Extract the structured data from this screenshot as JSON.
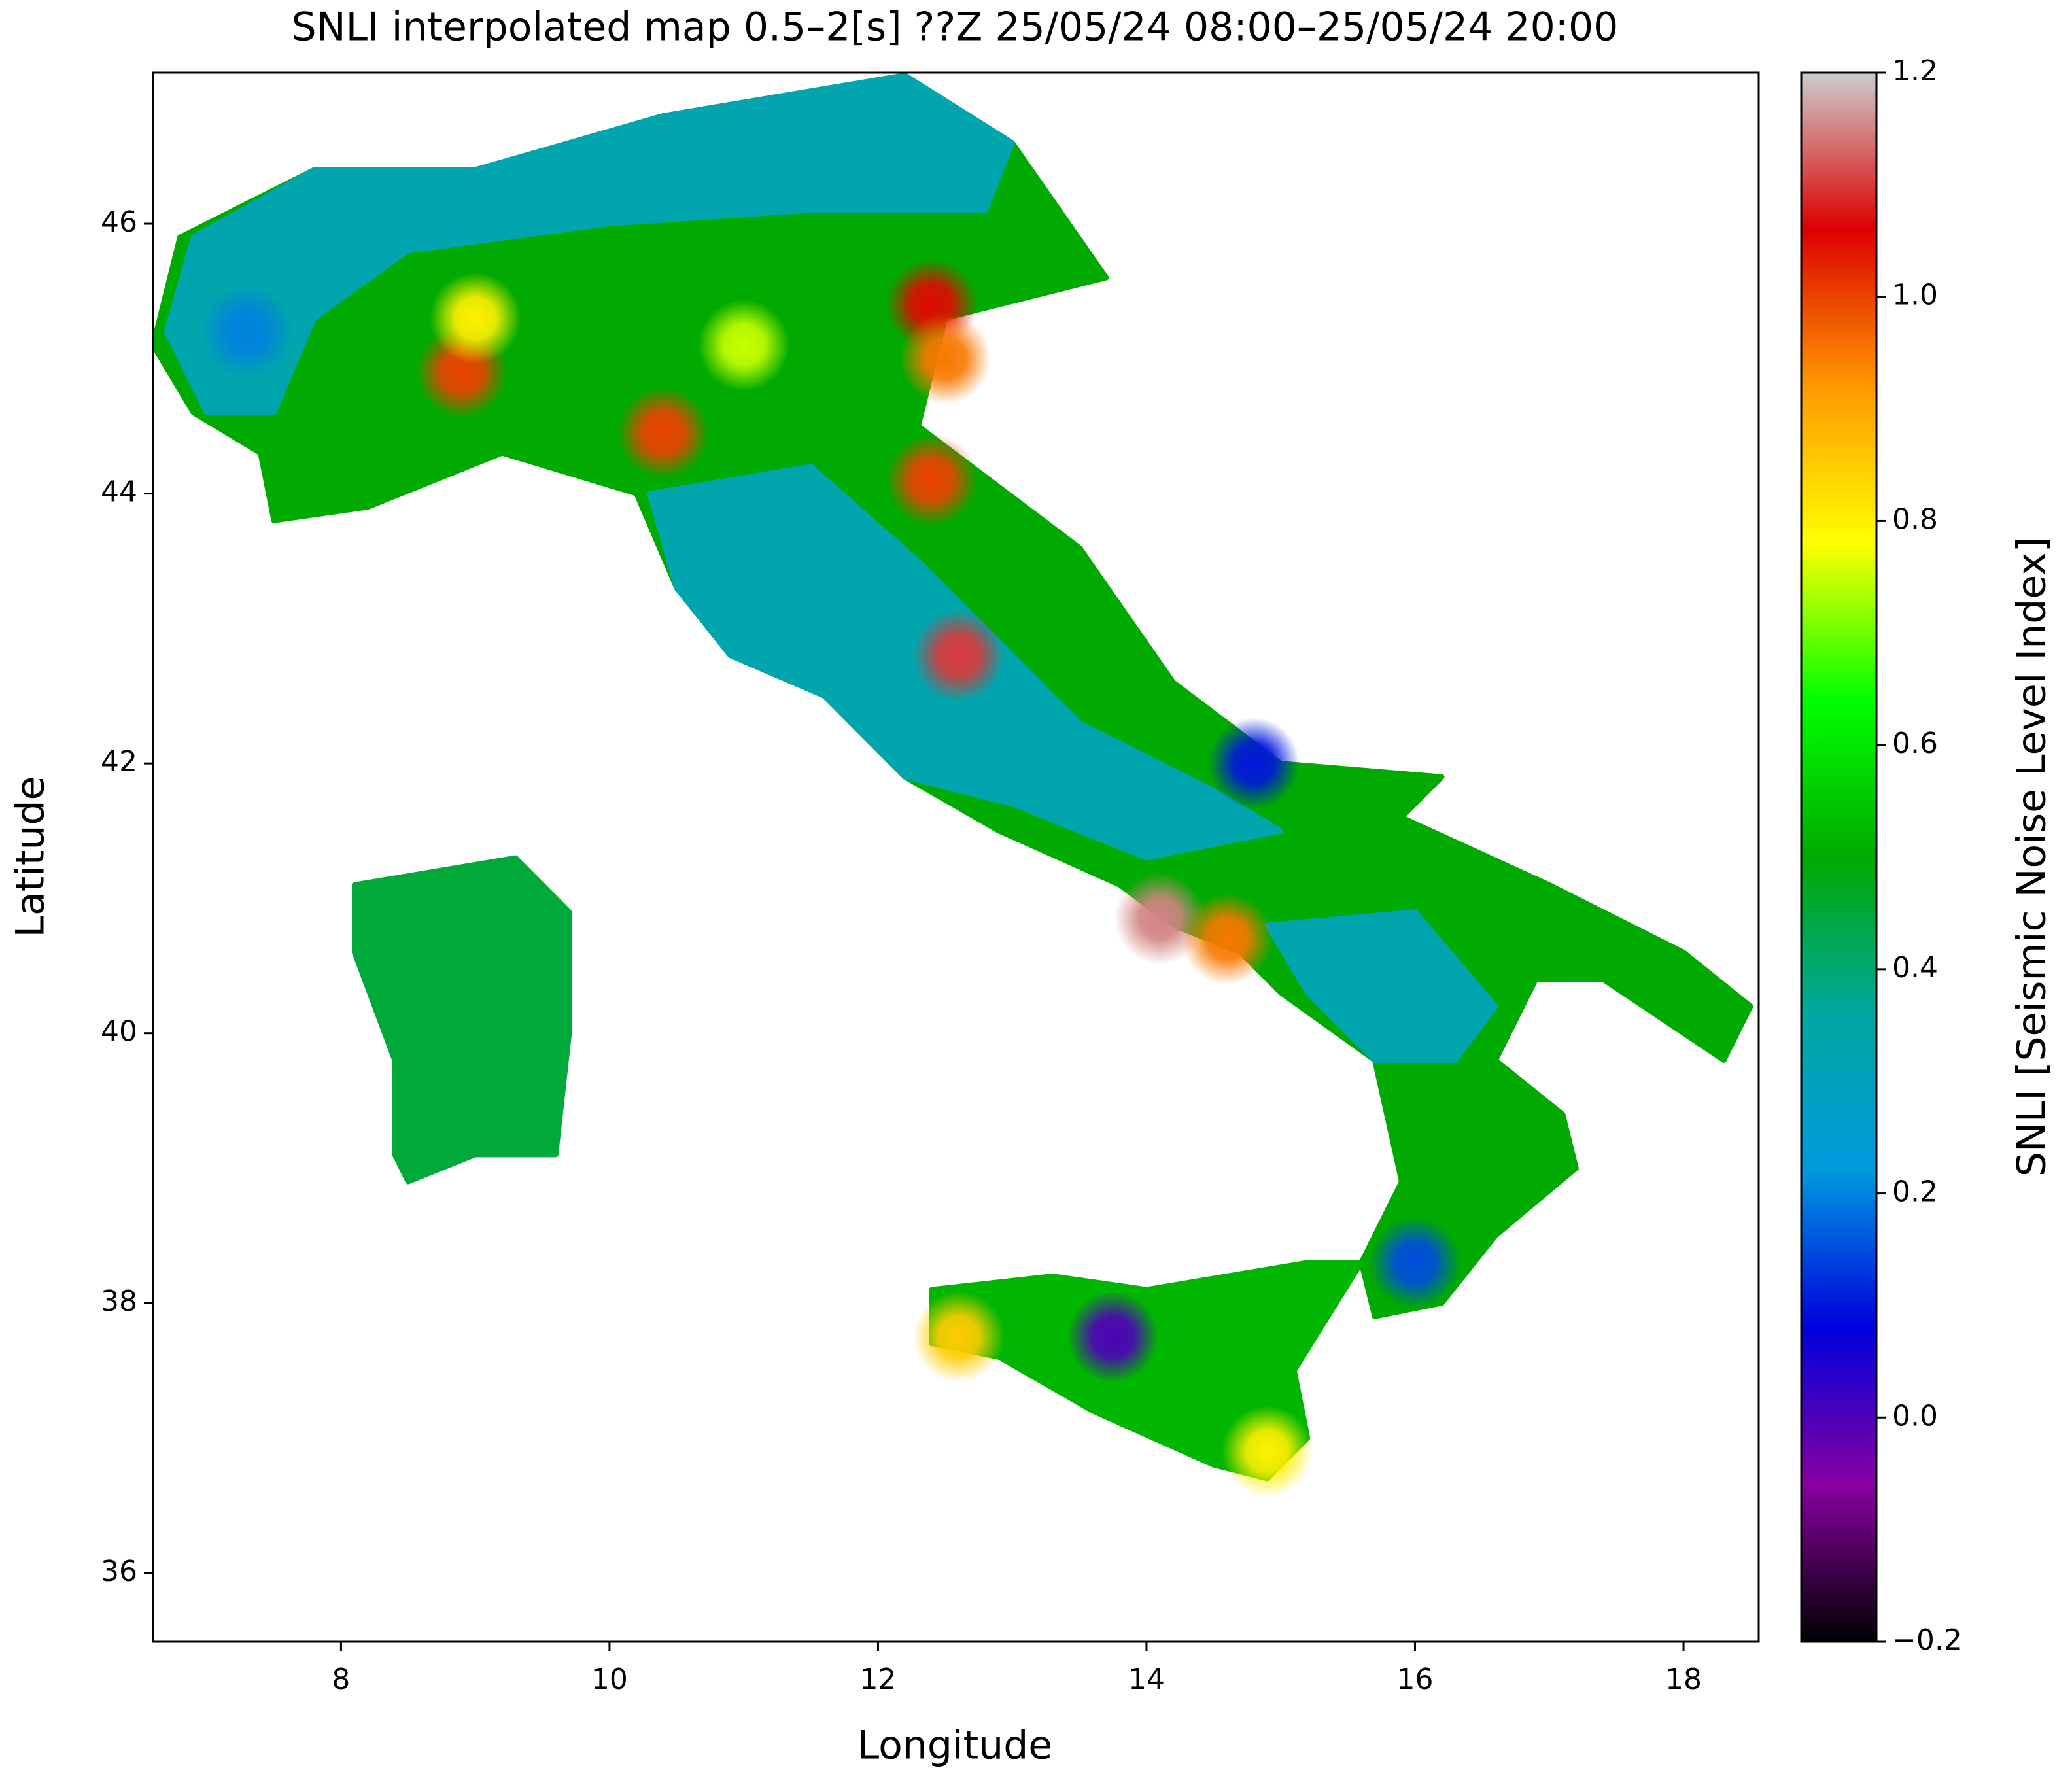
{
  "chart_data": {
    "type": "map",
    "title": "SNLI interpolated map 0.5–2[s] ??Z 25/05/24 08:00–25/05/24 20:00",
    "x_label": "Longitude",
    "y_label": "Latitude",
    "colorbar_label": "SNLI [Seismic Noise Level Index]",
    "xlim": [
      6.6,
      18.56
    ],
    "ylim": [
      35.49,
      47.12
    ],
    "xticks": [
      8,
      10,
      12,
      14,
      16,
      18
    ],
    "yticks": [
      36,
      38,
      40,
      42,
      44,
      46
    ],
    "clim": [
      -0.2,
      1.2
    ],
    "cticks": [
      {
        "value": -0.2,
        "label": "−0.2"
      },
      {
        "value": 0,
        "label": "0.0"
      },
      0.2,
      0.4,
      0.6,
      0.8,
      {
        "value": 1,
        "label": "1.0"
      },
      1.2
    ],
    "colormap": [
      "#000000",
      "#8800a0",
      "#0000dd",
      "#0099dd",
      "#00a8a0",
      "#00aa00",
      "#00ff00",
      "#ffff00",
      "#ff9900",
      "#dd0000",
      "#cccccc"
    ],
    "areas": [
      {
        "value": 0.45,
        "lon": [
          8.1,
          9.3,
          9.7,
          9.7,
          9.6,
          9.0,
          8.5,
          8.4,
          8.4,
          8.1
        ],
        "lat": [
          41.1,
          41.3,
          40.9,
          40.0,
          39.1,
          39.1,
          38.9,
          39.1,
          39.8,
          40.6
        ]
      },
      {
        "value": 0.5,
        "lon": [
          6.6,
          6.8,
          7.8,
          9.0,
          10.4,
          12.2,
          13.0,
          13.7,
          12.5,
          12.3,
          13.5,
          14.2,
          15.0,
          16.2,
          15.9,
          17.0,
          18.0,
          18.5,
          18.3,
          17.4,
          16.9,
          16.6,
          17.1,
          17.2,
          16.6,
          16.2,
          15.7,
          15.6,
          15.9,
          15.7,
          15.0,
          14.7,
          14.2,
          13.8,
          12.9,
          12.2,
          11.6,
          10.9,
          10.5,
          10.2,
          9.2,
          8.2,
          7.5,
          7.4,
          6.9
        ],
        "lat": [
          45.1,
          45.9,
          46.4,
          46.4,
          46.8,
          47.1,
          46.6,
          45.6,
          45.3,
          44.5,
          43.6,
          42.6,
          42.0,
          41.9,
          41.6,
          41.1,
          40.6,
          40.2,
          39.8,
          40.4,
          40.4,
          39.8,
          39.4,
          39.0,
          38.5,
          38.0,
          37.9,
          38.3,
          38.9,
          39.8,
          40.3,
          40.6,
          40.8,
          41.1,
          41.5,
          41.9,
          42.5,
          42.8,
          43.3,
          44.0,
          44.3,
          43.9,
          43.8,
          44.3,
          44.6
        ]
      },
      {
        "value": 0.52,
        "lon": [
          12.4,
          13.3,
          14.0,
          15.2,
          15.6,
          15.1,
          15.2,
          14.9,
          14.5,
          13.6,
          12.9,
          12.4
        ],
        "lat": [
          38.1,
          38.2,
          38.1,
          38.3,
          38.3,
          37.5,
          37.0,
          36.7,
          36.8,
          37.2,
          37.6,
          37.7
        ]
      },
      {
        "value": 0.33,
        "lon": [
          6.7,
          6.9,
          7.8,
          9.0,
          10.4,
          12.2,
          13.0,
          12.8,
          11.5,
          10.0,
          8.5,
          7.8,
          7.5,
          7.0
        ],
        "lat": [
          45.2,
          45.9,
          46.4,
          46.4,
          46.8,
          47.1,
          46.6,
          46.1,
          46.1,
          46.0,
          45.8,
          45.3,
          44.6,
          44.6
        ]
      },
      {
        "value": 0.33,
        "lon": [
          10.3,
          11.5,
          12.3,
          13.5,
          14.5,
          15.0,
          14.0,
          13.0,
          12.2,
          11.6,
          10.9,
          10.5
        ],
        "lat": [
          44.0,
          44.2,
          43.5,
          42.3,
          41.8,
          41.5,
          41.3,
          41.7,
          41.9,
          42.5,
          42.8,
          43.3
        ]
      },
      {
        "value": 0.33,
        "lon": [
          14.9,
          16.0,
          16.6,
          16.3,
          15.7,
          15.2
        ],
        "lat": [
          40.8,
          40.9,
          40.2,
          39.8,
          39.8,
          40.3
        ]
      }
    ],
    "hotspots": {
      "lon": [
        8.9,
        10.4,
        12.4,
        12.5,
        12.4,
        12.6,
        14.1,
        14.6,
        13.75,
        16.0,
        12.6,
        14.9,
        14.8,
        7.3,
        9.0,
        11.0
      ],
      "lat": [
        44.9,
        44.45,
        45.4,
        45.0,
        44.1,
        42.8,
        40.85,
        40.7,
        37.75,
        38.3,
        37.75,
        36.9,
        42.0,
        45.2,
        45.3,
        45.1
      ],
      "values": [
        1.0,
        1.0,
        1.05,
        0.95,
        1.0,
        1.1,
        1.15,
        0.95,
        0.0,
        0.15,
        0.85,
        0.8,
        0.1,
        0.2,
        0.8,
        0.75
      ]
    }
  }
}
